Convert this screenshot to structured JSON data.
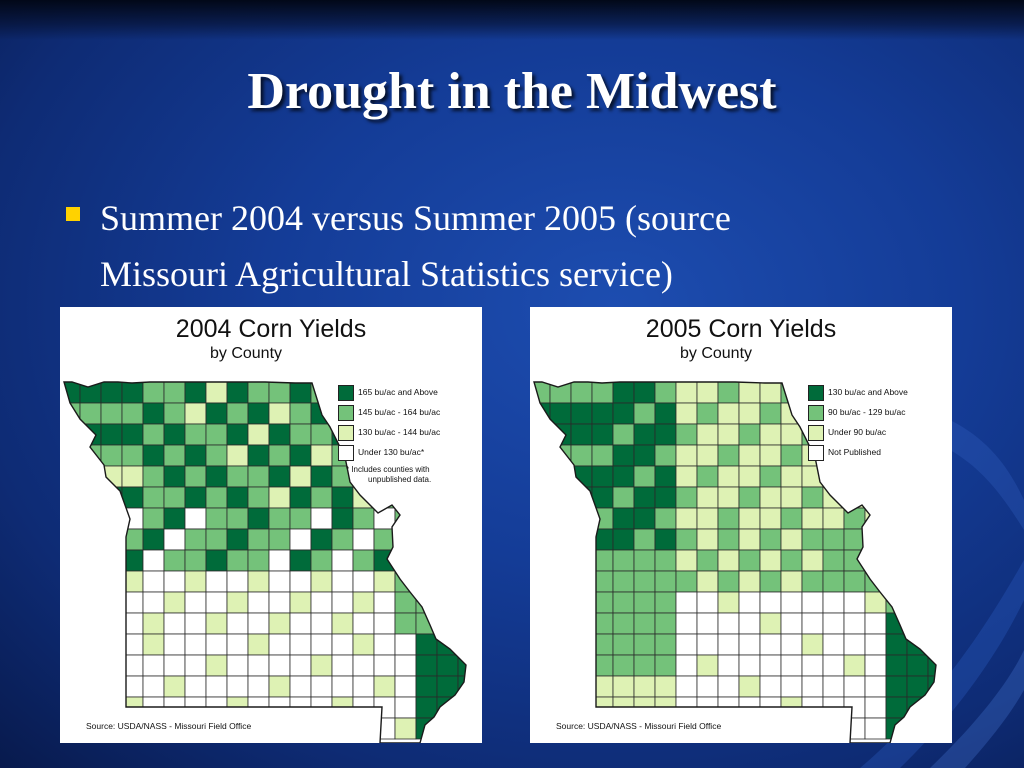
{
  "slide": {
    "title": "Drought in the Midwest",
    "bullet_line1": "Summer 2004 versus Summer 2005 (source",
    "bullet_line2": "Missouri Agricultural Statistics service)",
    "colors": {
      "background": "#143c97",
      "bullet": "#ffd200",
      "text": "#ffffff"
    }
  },
  "maps": [
    {
      "title": "2004 Corn Yields",
      "subtitle": "by County",
      "legend": [
        {
          "label": "165 bu/ac and Above",
          "color": "#006b3a"
        },
        {
          "label": "145 bu/ac - 164 bu/ac",
          "color": "#74c27a"
        },
        {
          "label": "130 bu/ac - 144 bu/ac",
          "color": "#def2b4"
        },
        {
          "label": "Under 130 bu/ac*",
          "color": "#ffffff"
        }
      ],
      "note_line1": "* Includes counties with",
      "note_line2": "unpublished data.",
      "source": "Source:  USDA/NASS - Missouri Field Office"
    },
    {
      "title": "2005 Corn Yields",
      "subtitle": "by County",
      "legend": [
        {
          "label": "130 bu/ac and Above",
          "color": "#006b3a"
        },
        {
          "label": "90 bu/ac - 129 bu/ac",
          "color": "#74c27a"
        },
        {
          "label": "Under 90 bu/ac",
          "color": "#def2b4"
        },
        {
          "label": "Not Published",
          "color": "#ffffff"
        }
      ],
      "note_line1": "",
      "note_line2": "",
      "source": "Source:  USDA/NASS - Missouri Field Office"
    }
  ]
}
